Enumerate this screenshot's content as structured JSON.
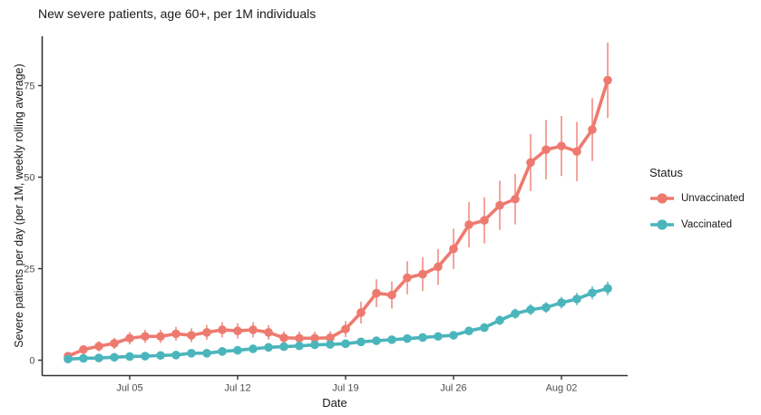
{
  "chart_data": {
    "type": "line",
    "title": "New severe patients, age 60+, per 1M individuals",
    "xlabel": "Date",
    "ylabel": "Severe patients per day (per 1M, weekly rolling average)",
    "grid": false,
    "background": "#ffffff",
    "axis_color": "#333333",
    "tick_label_color": "#4d4d4d",
    "x": [
      "Jul 01",
      "Jul 02",
      "Jul 03",
      "Jul 04",
      "Jul 05",
      "Jul 06",
      "Jul 07",
      "Jul 08",
      "Jul 09",
      "Jul 10",
      "Jul 11",
      "Jul 12",
      "Jul 13",
      "Jul 14",
      "Jul 15",
      "Jul 16",
      "Jul 17",
      "Jul 18",
      "Jul 19",
      "Jul 20",
      "Jul 21",
      "Jul 22",
      "Jul 23",
      "Jul 24",
      "Jul 25",
      "Jul 26",
      "Jul 27",
      "Jul 28",
      "Jul 29",
      "Jul 30",
      "Jul 31",
      "Aug 01",
      "Aug 02",
      "Aug 03",
      "Aug 04",
      "Aug 05"
    ],
    "x_tick_labels": [
      "Jul 05",
      "Jul 12",
      "Jul 19",
      "Jul 26",
      "Aug 02"
    ],
    "x_tick_indices": [
      4,
      11,
      18,
      25,
      32
    ],
    "y_ticks": [
      0,
      25,
      50,
      75
    ],
    "ylim": [
      -2,
      88
    ],
    "legend": {
      "title": "Status",
      "position": "right",
      "items": [
        "Unvaccinated",
        "Vaccinated"
      ]
    },
    "series": [
      {
        "name": "Unvaccinated",
        "color": "#EE7A6F",
        "marker": "point-line-errorbar",
        "values": [
          1.1,
          2.9,
          3.8,
          4.6,
          6.0,
          6.5,
          6.5,
          7.2,
          6.8,
          7.6,
          8.3,
          8.0,
          8.3,
          7.6,
          6.1,
          6.0,
          6.0,
          6.1,
          8.5,
          13.0,
          18.3,
          17.8,
          22.5,
          23.5,
          25.5,
          30.4,
          37.0,
          38.2,
          42.3,
          44.0,
          54.0,
          57.5,
          58.5,
          57.0,
          63.0,
          76.5
        ],
        "error": [
          0.8,
          1.2,
          1.4,
          1.5,
          1.7,
          1.8,
          1.8,
          1.9,
          1.9,
          2.0,
          2.1,
          2.1,
          2.1,
          2.0,
          1.8,
          1.8,
          1.8,
          1.8,
          2.2,
          3.0,
          3.8,
          3.7,
          4.5,
          4.6,
          4.9,
          5.5,
          6.2,
          6.3,
          6.7,
          6.9,
          7.8,
          8.1,
          8.2,
          8.1,
          8.6,
          10.3
        ]
      },
      {
        "name": "Vaccinated",
        "color": "#4BB5BC",
        "marker": "point-line-errorbar",
        "values": [
          0.3,
          0.5,
          0.6,
          0.8,
          1.0,
          1.1,
          1.3,
          1.4,
          1.9,
          1.9,
          2.4,
          2.7,
          3.1,
          3.5,
          3.7,
          3.9,
          4.2,
          4.3,
          4.5,
          5.0,
          5.3,
          5.6,
          5.9,
          6.2,
          6.5,
          6.8,
          8.0,
          8.9,
          10.9,
          12.7,
          13.8,
          14.4,
          15.7,
          16.7,
          18.4,
          19.6
        ],
        "error": [
          0.2,
          0.25,
          0.3,
          0.3,
          0.35,
          0.4,
          0.4,
          0.45,
          0.5,
          0.5,
          0.55,
          0.6,
          0.65,
          0.7,
          0.7,
          0.75,
          0.8,
          0.8,
          0.8,
          0.85,
          0.9,
          0.9,
          0.95,
          1.0,
          1.0,
          1.05,
          1.1,
          1.2,
          1.3,
          1.4,
          1.5,
          1.5,
          1.6,
          1.7,
          1.8,
          1.9
        ]
      }
    ]
  }
}
